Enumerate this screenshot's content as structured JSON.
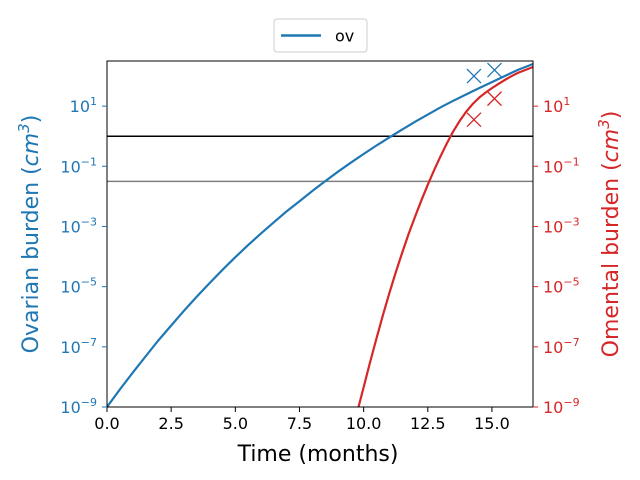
{
  "chart_data": {
    "type": "line",
    "title": "",
    "xlabel": "Time (months)",
    "ylabel_left": "Ovarian burden (cm³)",
    "ylabel_left_base": "Ovarian burden (",
    "ylabel_left_unit": "cm",
    "ylabel_left_exp": "3",
    "ylabel_left_close": ")",
    "ylabel_right": "Omental burden (cm³)",
    "ylabel_right_base": "Omental burden (",
    "ylabel_right_unit": "cm",
    "ylabel_right_exp": "3",
    "ylabel_right_close": ")",
    "xlim": [
      0,
      16.6
    ],
    "ylim_log10": [
      -9,
      2.5
    ],
    "y_scale": "log",
    "grid": false,
    "legend": {
      "placement": "top-center-outside",
      "entries": [
        "ov"
      ]
    },
    "x_ticks": [
      {
        "value": 0.0,
        "label": "0.0"
      },
      {
        "value": 2.5,
        "label": "2.5"
      },
      {
        "value": 5.0,
        "label": "5.0"
      },
      {
        "value": 7.5,
        "label": "7.5"
      },
      {
        "value": 10.0,
        "label": "10.0"
      },
      {
        "value": 12.5,
        "label": "12.5"
      },
      {
        "value": 15.0,
        "label": "15.0"
      }
    ],
    "y_ticks_exponents": [
      1,
      -1,
      -3,
      -5,
      -7,
      -9
    ],
    "y_tick_base": "10",
    "series": [
      {
        "name": "ov",
        "axis": "left",
        "color": "#1f77b4",
        "x": [
          0,
          0.5,
          1,
          1.5,
          2,
          2.5,
          3,
          3.5,
          4,
          4.5,
          5,
          5.5,
          6,
          6.5,
          7,
          7.5,
          8,
          8.5,
          9,
          9.5,
          10,
          10.5,
          11,
          11.5,
          12,
          12.5,
          13,
          13.5,
          14,
          14.5,
          15,
          15.5,
          16,
          16.6
        ],
        "log10_y": [
          -9.0,
          -8.42,
          -7.86,
          -7.32,
          -6.79,
          -6.29,
          -5.8,
          -5.33,
          -4.88,
          -4.44,
          -4.02,
          -3.62,
          -3.23,
          -2.86,
          -2.5,
          -2.16,
          -1.82,
          -1.5,
          -1.18,
          -0.88,
          -0.59,
          -0.31,
          -0.04,
          0.22,
          0.48,
          0.72,
          0.96,
          1.18,
          1.39,
          1.6,
          1.8,
          2.0,
          2.2,
          2.4
        ]
      },
      {
        "axis": "right",
        "color": "#d62728",
        "x": [
          9.8,
          10.0,
          10.25,
          10.5,
          10.75,
          11.0,
          11.25,
          11.5,
          11.75,
          12.0,
          12.25,
          12.5,
          12.75,
          13.0,
          13.25,
          13.5,
          13.75,
          14.0,
          14.25,
          14.5,
          14.75,
          15.0,
          15.25,
          15.5,
          15.75,
          16.0,
          16.3,
          16.6
        ],
        "log10_y": [
          -9.0,
          -8.35,
          -7.52,
          -6.72,
          -5.95,
          -5.22,
          -4.53,
          -3.88,
          -3.26,
          -2.68,
          -2.13,
          -1.61,
          -1.12,
          -0.66,
          -0.23,
          0.17,
          0.52,
          0.82,
          1.07,
          1.28,
          1.45,
          1.6,
          1.74,
          1.87,
          1.99,
          2.1,
          2.2,
          2.3
        ]
      }
    ],
    "markers": [
      {
        "axis": "left",
        "x": 14.3,
        "log10_y": 2.0,
        "color": "#1f77b4",
        "symbol": "x"
      },
      {
        "axis": "left",
        "x": 15.1,
        "log10_y": 2.2,
        "color": "#1f77b4",
        "symbol": "x"
      },
      {
        "axis": "right",
        "x": 14.3,
        "log10_y": 0.55,
        "color": "#d62728",
        "symbol": "x"
      },
      {
        "axis": "right",
        "x": 15.1,
        "log10_y": 1.25,
        "color": "#d62728",
        "symbol": "x"
      }
    ],
    "hlines": [
      {
        "log10_y": 0,
        "color": "#000000"
      },
      {
        "log10_y": -1.5,
        "color": "#808080"
      }
    ],
    "colors": {
      "left_axis": "#1f77b4",
      "right_axis": "#d62728"
    }
  }
}
